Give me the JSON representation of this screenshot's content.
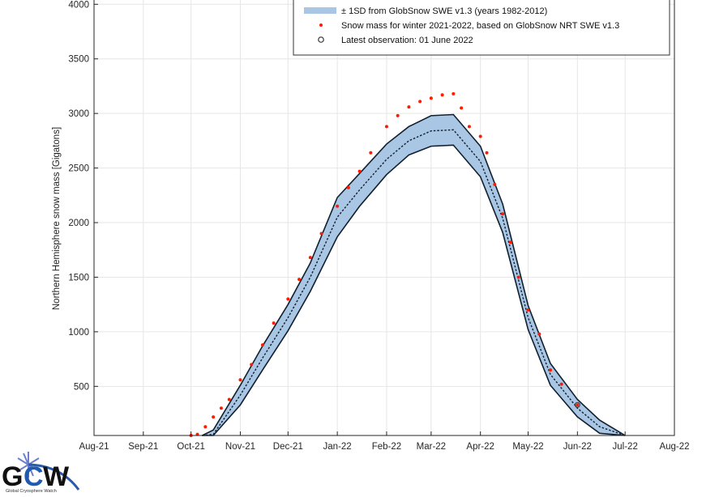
{
  "chart_data": {
    "type": "line",
    "title": "",
    "xlabel": "",
    "ylabel": "Northern Hemisphere snow mass [Gigatons]",
    "xlim": [
      "2021-08-01",
      "2022-08-01"
    ],
    "ylim": [
      50,
      4040
    ],
    "grid": true,
    "legend_position": "top-right",
    "x_tick_labels": [
      "Aug-21",
      "Sep-21",
      "Oct-21",
      "Nov-21",
      "Dec-21",
      "Jan-22",
      "Feb-22",
      "Mar-22",
      "Apr-22",
      "May-22",
      "Jun-22",
      "Jul-22",
      "Aug-22"
    ],
    "x_tick_dates": [
      "2021-08-01",
      "2021-09-01",
      "2021-10-01",
      "2021-11-01",
      "2021-12-01",
      "2022-01-01",
      "2022-02-01",
      "2022-03-01",
      "2022-04-01",
      "2022-05-01",
      "2022-06-01",
      "2022-07-01",
      "2022-08-01"
    ],
    "y_ticks": [
      500,
      1000,
      1500,
      2000,
      2500,
      3000,
      3500,
      4000
    ],
    "legend": {
      "band_label": "± 1SD from GlobSnow SWE v1.3 (years 1982-2012)",
      "obs_label": "Snow mass for winter 2021-2022, based on GlobSnow NRT SWE v1.3",
      "latest_label": "Latest observation: 01 June 2022"
    },
    "colors": {
      "band": "#a9c6e4",
      "obs": "#ff1a00",
      "line": "#10202e"
    },
    "climatology": {
      "dates": [
        "2021-10-08",
        "2021-10-15",
        "2021-11-01",
        "2021-11-15",
        "2021-12-01",
        "2021-12-15",
        "2022-01-01",
        "2022-01-15",
        "2022-02-01",
        "2022-02-15",
        "2022-03-01",
        "2022-03-15",
        "2022-04-01",
        "2022-04-15",
        "2022-05-01",
        "2022-05-15",
        "2022-06-01",
        "2022-06-15",
        "2022-07-01"
      ],
      "mean": [
        0,
        60,
        420,
        760,
        1130,
        1500,
        2050,
        2300,
        2580,
        2750,
        2840,
        2850,
        2560,
        2040,
        1130,
        610,
        300,
        130,
        10
      ],
      "sd": [
        0,
        40,
        90,
        110,
        120,
        130,
        180,
        150,
        140,
        130,
        140,
        140,
        140,
        130,
        110,
        100,
        80,
        60,
        20
      ]
    },
    "observations": {
      "dates": [
        "2021-10-01",
        "2021-10-05",
        "2021-10-10",
        "2021-10-15",
        "2021-10-20",
        "2021-10-25",
        "2021-11-01",
        "2021-11-08",
        "2021-11-15",
        "2021-11-22",
        "2021-12-01",
        "2021-12-08",
        "2021-12-15",
        "2021-12-22",
        "2022-01-01",
        "2022-01-08",
        "2022-01-15",
        "2022-01-22",
        "2022-02-01",
        "2022-02-08",
        "2022-02-15",
        "2022-02-22",
        "2022-03-01",
        "2022-03-08",
        "2022-03-15",
        "2022-03-20",
        "2022-03-25",
        "2022-04-01",
        "2022-04-05",
        "2022-04-10",
        "2022-04-15",
        "2022-04-20",
        "2022-04-25",
        "2022-05-01",
        "2022-05-08",
        "2022-05-15",
        "2022-05-22",
        "2022-06-01"
      ],
      "values": [
        20,
        60,
        130,
        220,
        300,
        380,
        560,
        700,
        880,
        1080,
        1300,
        1480,
        1680,
        1900,
        2150,
        2320,
        2470,
        2640,
        2880,
        2980,
        3060,
        3110,
        3140,
        3170,
        3180,
        3050,
        2880,
        2790,
        2640,
        2350,
        2080,
        1820,
        1500,
        1200,
        980,
        650,
        520,
        330
      ]
    },
    "latest_observation": {
      "date": "2022-06-01",
      "value": 330
    }
  },
  "logo": {
    "text": "GCW",
    "subtitle": "Global Cryosphere Watch"
  }
}
